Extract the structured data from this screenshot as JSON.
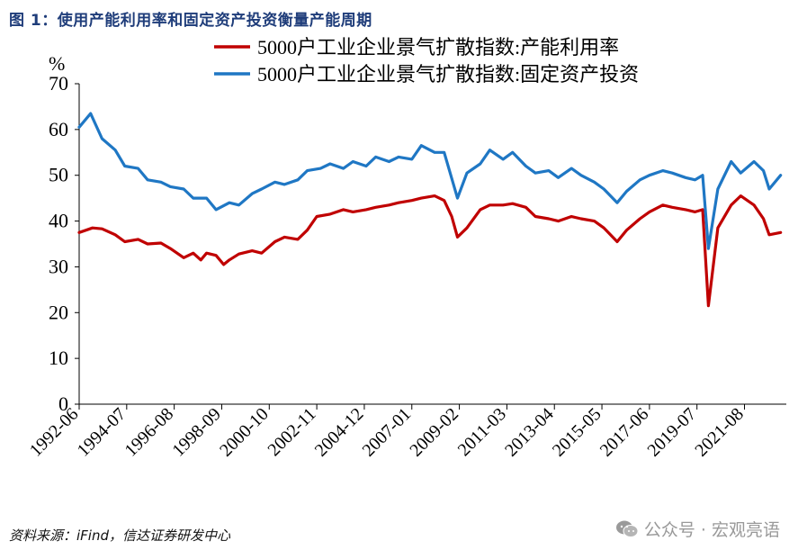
{
  "figure_title": "图 1：使用产能利用率和固定资产投资衡量产能周期",
  "source_note": "资料来源：iFind，信达证券研发中心",
  "watermark": {
    "icon": "wechat-icon",
    "text": "公众号 · 宏观亮语"
  },
  "chart_data": {
    "type": "line",
    "title": "",
    "ylabel": "%",
    "xlabel": "",
    "ylim": [
      0,
      70
    ],
    "yticks": [
      0,
      10,
      20,
      30,
      40,
      50,
      60,
      70
    ],
    "xlim": [
      "1992-06",
      "2023-06"
    ],
    "xtick_labels": [
      "1992-06",
      "1994-07",
      "1996-08",
      "1998-09",
      "2000-10",
      "2002-11",
      "2004-12",
      "2007-01",
      "2009-02",
      "2011-03",
      "2013-04",
      "2015-05",
      "2017-06",
      "2019-07",
      "2021-08"
    ],
    "grid": false,
    "legend_position": "top-right",
    "series": [
      {
        "name": "5000户工业企业景气扩散指数:产能利用率",
        "color": "#c00000",
        "points": [
          [
            "1992-06",
            37.5
          ],
          [
            "1993-01",
            38.5
          ],
          [
            "1993-06",
            38.3
          ],
          [
            "1994-01",
            37.0
          ],
          [
            "1994-06",
            35.5
          ],
          [
            "1995-01",
            36.0
          ],
          [
            "1995-06",
            35.0
          ],
          [
            "1996-01",
            35.2
          ],
          [
            "1996-06",
            34.0
          ],
          [
            "1997-01",
            32.0
          ],
          [
            "1997-06",
            33.0
          ],
          [
            "1997-10",
            31.5
          ],
          [
            "1998-01",
            33.0
          ],
          [
            "1998-06",
            32.5
          ],
          [
            "1998-10",
            30.5
          ],
          [
            "1999-01",
            31.5
          ],
          [
            "1999-06",
            32.8
          ],
          [
            "2000-01",
            33.5
          ],
          [
            "2000-06",
            33.0
          ],
          [
            "2001-01",
            35.5
          ],
          [
            "2001-06",
            36.5
          ],
          [
            "2002-01",
            36.0
          ],
          [
            "2002-06",
            38.0
          ],
          [
            "2002-11",
            41.0
          ],
          [
            "2003-06",
            41.5
          ],
          [
            "2004-01",
            42.5
          ],
          [
            "2004-06",
            42.0
          ],
          [
            "2005-01",
            42.5
          ],
          [
            "2005-06",
            43.0
          ],
          [
            "2006-01",
            43.5
          ],
          [
            "2006-06",
            44.0
          ],
          [
            "2007-01",
            44.5
          ],
          [
            "2007-06",
            45.0
          ],
          [
            "2008-01",
            45.5
          ],
          [
            "2008-06",
            44.5
          ],
          [
            "2008-10",
            41.0
          ],
          [
            "2009-01",
            36.5
          ],
          [
            "2009-06",
            38.5
          ],
          [
            "2010-01",
            42.5
          ],
          [
            "2010-06",
            43.5
          ],
          [
            "2011-01",
            43.5
          ],
          [
            "2011-06",
            43.8
          ],
          [
            "2012-01",
            43.0
          ],
          [
            "2012-06",
            41.0
          ],
          [
            "2013-01",
            40.5
          ],
          [
            "2013-06",
            40.0
          ],
          [
            "2014-01",
            41.0
          ],
          [
            "2014-06",
            40.5
          ],
          [
            "2015-01",
            40.0
          ],
          [
            "2015-06",
            38.5
          ],
          [
            "2016-01",
            35.5
          ],
          [
            "2016-06",
            38.0
          ],
          [
            "2017-01",
            40.5
          ],
          [
            "2017-06",
            42.0
          ],
          [
            "2018-01",
            43.5
          ],
          [
            "2018-06",
            43.0
          ],
          [
            "2019-01",
            42.5
          ],
          [
            "2019-06",
            42.0
          ],
          [
            "2019-10",
            42.5
          ],
          [
            "2020-01",
            21.5
          ],
          [
            "2020-06",
            38.5
          ],
          [
            "2021-01",
            43.5
          ],
          [
            "2021-06",
            45.5
          ],
          [
            "2022-01",
            43.5
          ],
          [
            "2022-06",
            40.5
          ],
          [
            "2022-09",
            37.0
          ],
          [
            "2023-03",
            37.5
          ]
        ]
      },
      {
        "name": "5000户工业企业景气扩散指数:固定资产投资",
        "color": "#1f77c4",
        "points": [
          [
            "1992-06",
            60.5
          ],
          [
            "1992-12",
            63.5
          ],
          [
            "1993-06",
            58.0
          ],
          [
            "1994-01",
            55.5
          ],
          [
            "1994-06",
            52.0
          ],
          [
            "1995-01",
            51.5
          ],
          [
            "1995-06",
            49.0
          ],
          [
            "1996-01",
            48.5
          ],
          [
            "1996-06",
            47.5
          ],
          [
            "1997-01",
            47.0
          ],
          [
            "1997-06",
            45.0
          ],
          [
            "1998-01",
            45.0
          ],
          [
            "1998-06",
            42.5
          ],
          [
            "1999-01",
            44.0
          ],
          [
            "1999-06",
            43.5
          ],
          [
            "2000-01",
            46.0
          ],
          [
            "2000-06",
            47.0
          ],
          [
            "2001-01",
            48.5
          ],
          [
            "2001-06",
            48.0
          ],
          [
            "2002-01",
            49.0
          ],
          [
            "2002-06",
            51.0
          ],
          [
            "2003-01",
            51.5
          ],
          [
            "2003-06",
            52.5
          ],
          [
            "2004-01",
            51.5
          ],
          [
            "2004-06",
            53.0
          ],
          [
            "2005-01",
            52.0
          ],
          [
            "2005-06",
            54.0
          ],
          [
            "2006-01",
            53.0
          ],
          [
            "2006-06",
            54.0
          ],
          [
            "2007-01",
            53.5
          ],
          [
            "2007-06",
            56.5
          ],
          [
            "2008-01",
            55.0
          ],
          [
            "2008-06",
            55.0
          ],
          [
            "2009-01",
            45.0
          ],
          [
            "2009-06",
            50.5
          ],
          [
            "2010-01",
            52.5
          ],
          [
            "2010-06",
            55.5
          ],
          [
            "2011-01",
            53.5
          ],
          [
            "2011-06",
            55.0
          ],
          [
            "2012-01",
            52.0
          ],
          [
            "2012-06",
            50.5
          ],
          [
            "2013-01",
            51.0
          ],
          [
            "2013-06",
            49.5
          ],
          [
            "2014-01",
            51.5
          ],
          [
            "2014-06",
            50.0
          ],
          [
            "2015-01",
            48.5
          ],
          [
            "2015-06",
            47.0
          ],
          [
            "2016-01",
            44.0
          ],
          [
            "2016-06",
            46.5
          ],
          [
            "2017-01",
            49.0
          ],
          [
            "2017-06",
            50.0
          ],
          [
            "2018-01",
            51.0
          ],
          [
            "2018-06",
            50.5
          ],
          [
            "2019-01",
            49.5
          ],
          [
            "2019-06",
            49.0
          ],
          [
            "2019-10",
            50.0
          ],
          [
            "2020-01",
            34.0
          ],
          [
            "2020-06",
            47.0
          ],
          [
            "2021-01",
            53.0
          ],
          [
            "2021-06",
            50.5
          ],
          [
            "2022-01",
            53.0
          ],
          [
            "2022-06",
            51.0
          ],
          [
            "2022-09",
            47.0
          ],
          [
            "2023-03",
            50.0
          ]
        ]
      }
    ]
  }
}
